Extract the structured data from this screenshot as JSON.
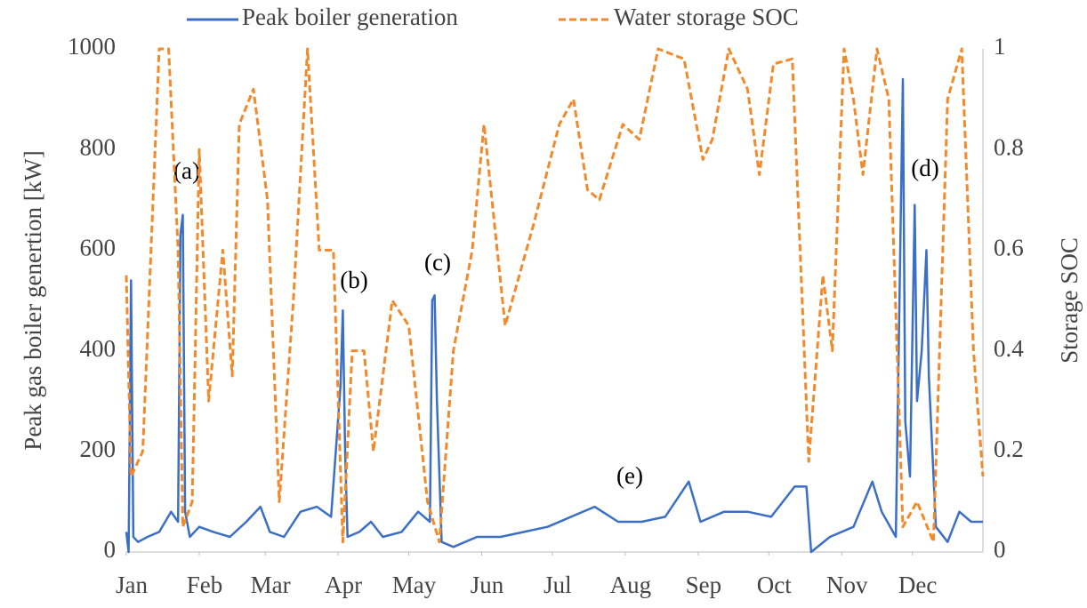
{
  "chart_data": {
    "type": "line",
    "xlim": [
      1,
      365
    ],
    "xticks": [
      {
        "value": 1,
        "label": "Jan"
      },
      {
        "value": 32,
        "label": "Feb"
      },
      {
        "value": 60,
        "label": "Mar"
      },
      {
        "value": 91,
        "label": "Apr"
      },
      {
        "value": 121,
        "label": "May"
      },
      {
        "value": 152,
        "label": "Jun"
      },
      {
        "value": 182,
        "label": "Jul"
      },
      {
        "value": 213,
        "label": "Aug"
      },
      {
        "value": 244,
        "label": "Sep"
      },
      {
        "value": 274,
        "label": "Oct"
      },
      {
        "value": 305,
        "label": "Nov"
      },
      {
        "value": 335,
        "label": "Dec"
      }
    ],
    "ylabel": "Peak gas boiler genertion [kW]",
    "y2label": "Storage SOC",
    "ylim": [
      0,
      1000
    ],
    "yticks": [
      0,
      200,
      400,
      600,
      800,
      1000
    ],
    "y2lim": [
      0,
      1
    ],
    "y2ticks": [
      0,
      0.2,
      0.4,
      0.6,
      0.8,
      1
    ],
    "grid": false,
    "legend": "top",
    "annotations": [
      "(a)",
      "(b)",
      "(c)",
      "(d)",
      "(e)"
    ],
    "series": [
      {
        "name": "Peak boiler generation",
        "color": "#3b6fc6",
        "dash": false,
        "x": [
          1,
          2,
          3,
          4,
          6,
          10,
          15,
          20,
          23,
          24,
          25,
          26,
          28,
          32,
          38,
          45,
          52,
          58,
          62,
          68,
          75,
          82,
          88,
          92,
          93,
          94,
          95,
          100,
          105,
          110,
          118,
          125,
          130,
          131,
          132,
          133,
          135,
          140,
          150,
          160,
          170,
          180,
          190,
          200,
          210,
          220,
          230,
          240,
          245,
          255,
          265,
          275,
          285,
          290,
          292,
          300,
          310,
          318,
          322,
          328,
          331,
          332,
          334,
          336,
          337,
          339,
          341,
          342,
          345,
          350,
          355,
          360,
          365
        ],
        "values": [
          40,
          0,
          540,
          30,
          20,
          30,
          40,
          80,
          60,
          630,
          670,
          80,
          30,
          50,
          40,
          30,
          60,
          90,
          40,
          30,
          80,
          90,
          70,
          330,
          480,
          200,
          30,
          40,
          60,
          30,
          40,
          80,
          60,
          500,
          510,
          300,
          20,
          10,
          30,
          30,
          40,
          50,
          70,
          90,
          60,
          60,
          70,
          140,
          60,
          80,
          80,
          70,
          130,
          130,
          0,
          30,
          50,
          140,
          80,
          30,
          940,
          260,
          150,
          690,
          300,
          400,
          600,
          350,
          50,
          20,
          80,
          60,
          60
        ]
      },
      {
        "name": "Water storage SOC",
        "color": "#f08a2c",
        "dash": true,
        "axis": "y2",
        "x": [
          1,
          3,
          8,
          15,
          19,
          23,
          25,
          29,
          32,
          36,
          42,
          46,
          49,
          55,
          61,
          66,
          72,
          78,
          83,
          89,
          93,
          97,
          102,
          106,
          114,
          121,
          129,
          134,
          140,
          148,
          153,
          162,
          174,
          185,
          191,
          197,
          202,
          212,
          219,
          227,
          238,
          246,
          250,
          257,
          265,
          270,
          276,
          284,
          291,
          297,
          301,
          306,
          310,
          314,
          320,
          325,
          331,
          337,
          344,
          350,
          356,
          361,
          365
        ],
        "values": [
          0.55,
          0.15,
          0.2,
          1.0,
          1.0,
          0.6,
          0.05,
          0.1,
          0.8,
          0.3,
          0.6,
          0.35,
          0.85,
          0.92,
          0.7,
          0.1,
          0.5,
          1.0,
          0.6,
          0.6,
          0.02,
          0.4,
          0.4,
          0.2,
          0.5,
          0.45,
          0.1,
          0.02,
          0.4,
          0.6,
          0.85,
          0.45,
          0.65,
          0.85,
          0.9,
          0.72,
          0.7,
          0.85,
          0.82,
          1.0,
          0.98,
          0.78,
          0.82,
          1.0,
          0.92,
          0.75,
          0.97,
          0.98,
          0.18,
          0.55,
          0.4,
          1.0,
          0.9,
          0.75,
          1.0,
          0.9,
          0.05,
          0.1,
          0.02,
          0.9,
          1.0,
          0.4,
          0.15
        ]
      }
    ]
  }
}
